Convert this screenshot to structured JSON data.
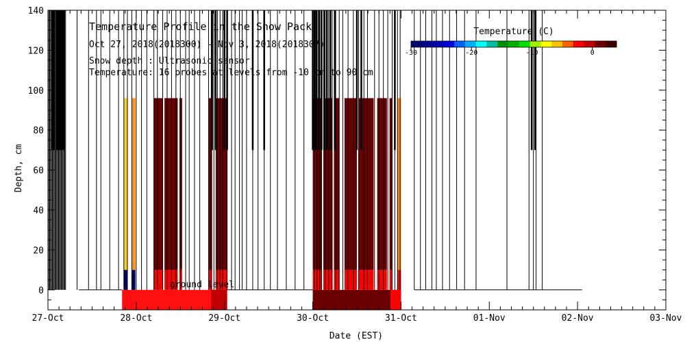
{
  "chart_data": {
    "type": "heatmap",
    "title": "Temperature Profile in the Snow Pack",
    "subtitle": "Oct 27, 2018(2018300) - Nov  3, 2018(2018307)",
    "notes": [
      "Snow depth : Ultrasonic sensor",
      "Temperature: 16 probes at levels from -10 cm to 90 cm"
    ],
    "xlabel": "Date (EST)",
    "ylabel": "Depth, cm",
    "x_unit": "day (0 = 27-Oct 00:00 EST)",
    "xlim": [
      0,
      7
    ],
    "ylim": [
      -10,
      140
    ],
    "x_ticks": [
      {
        "day": 0,
        "label": "27-Oct"
      },
      {
        "day": 1,
        "label": "28-Oct"
      },
      {
        "day": 2,
        "label": "29-Oct"
      },
      {
        "day": 3,
        "label": "30-Oct"
      },
      {
        "day": 4,
        "label": "31-Oct"
      },
      {
        "day": 5,
        "label": "01-Nov"
      },
      {
        "day": 6,
        "label": "02-Nov"
      },
      {
        "day": 7,
        "label": "03-Nov"
      }
    ],
    "y_ticks": [
      0,
      20,
      40,
      60,
      80,
      100,
      120,
      140
    ],
    "ground_label": "ground level",
    "colorbar": {
      "title": "Temperature (C)",
      "range": [
        -30,
        4
      ],
      "tick_labels": [
        {
          "v": -30,
          "label": "-30"
        },
        {
          "v": -20,
          "label": "-20"
        },
        {
          "v": -10,
          "label": "-10"
        },
        {
          "v": 0,
          "label": "0"
        }
      ],
      "colors": [
        "#000070",
        "#000090",
        "#0000b0",
        "#0000dd",
        "#0060ff",
        "#00b0ff",
        "#00ffff",
        "#00c0a0",
        "#009000",
        "#00b000",
        "#00e000",
        "#a0f000",
        "#ffff00",
        "#ffc000",
        "#ff6000",
        "#ff0000",
        "#c00000",
        "#700000",
        "#400000"
      ]
    },
    "colors": {
      "dark_red": "#6b0000",
      "red": "#ff0000",
      "orange": "#ff9000",
      "yellow": "#ffd020",
      "navy": "#000066",
      "soil_red": "#ff1010"
    },
    "snow_cells": [
      {
        "x0": 0.86,
        "x1": 0.9,
        "y0": 10,
        "y1": 96,
        "fill": "#ffd020"
      },
      {
        "x0": 0.86,
        "x1": 0.9,
        "y0": 0,
        "y1": 10,
        "fill": "#000066"
      },
      {
        "x0": 0.95,
        "x1": 0.99,
        "y0": 10,
        "y1": 96,
        "fill": "#ff9000"
      },
      {
        "x0": 0.95,
        "x1": 0.99,
        "y0": 0,
        "y1": 10,
        "fill": "#000066"
      },
      {
        "x0": 1.2,
        "x1": 1.3,
        "y0": 10,
        "y1": 96,
        "fill": "#6b0000"
      },
      {
        "x0": 1.2,
        "x1": 1.3,
        "y0": 0,
        "y1": 10,
        "fill": "#ff0000"
      },
      {
        "x0": 1.32,
        "x1": 1.47,
        "y0": 10,
        "y1": 96,
        "fill": "#6b0000"
      },
      {
        "x0": 1.32,
        "x1": 1.47,
        "y0": 0,
        "y1": 10,
        "fill": "#ff0000"
      },
      {
        "x0": 1.49,
        "x1": 1.52,
        "y0": 10,
        "y1": 96,
        "fill": "#6b0000"
      },
      {
        "x0": 1.49,
        "x1": 1.52,
        "y0": 0,
        "y1": 10,
        "fill": "#ff0000"
      },
      {
        "x0": 1.82,
        "x1": 1.86,
        "y0": 10,
        "y1": 96,
        "fill": "#6b0000"
      },
      {
        "x0": 1.82,
        "x1": 1.86,
        "y0": 0,
        "y1": 10,
        "fill": "#ff0000"
      },
      {
        "x0": 1.9,
        "x1": 2.03,
        "y0": 10,
        "y1": 96,
        "fill": "#6b0000"
      },
      {
        "x0": 1.9,
        "x1": 2.03,
        "y0": 0,
        "y1": 10,
        "fill": "#ff0000"
      },
      {
        "x0": 3.0,
        "x1": 3.1,
        "y0": 10,
        "y1": 96,
        "fill": "#6b0000"
      },
      {
        "x0": 3.0,
        "x1": 3.1,
        "y0": 0,
        "y1": 10,
        "fill": "#ff0000"
      },
      {
        "x0": 3.12,
        "x1": 3.22,
        "y0": 10,
        "y1": 96,
        "fill": "#6b0000"
      },
      {
        "x0": 3.12,
        "x1": 3.22,
        "y0": 0,
        "y1": 10,
        "fill": "#ff0000"
      },
      {
        "x0": 3.24,
        "x1": 3.3,
        "y0": 10,
        "y1": 96,
        "fill": "#6b0000"
      },
      {
        "x0": 3.24,
        "x1": 3.3,
        "y0": 0,
        "y1": 10,
        "fill": "#ff0000"
      },
      {
        "x0": 3.36,
        "x1": 3.5,
        "y0": 10,
        "y1": 96,
        "fill": "#6b0000"
      },
      {
        "x0": 3.36,
        "x1": 3.5,
        "y0": 0,
        "y1": 10,
        "fill": "#ff0000"
      },
      {
        "x0": 3.52,
        "x1": 3.69,
        "y0": 10,
        "y1": 96,
        "fill": "#6b0000"
      },
      {
        "x0": 3.52,
        "x1": 3.69,
        "y0": 0,
        "y1": 10,
        "fill": "#ff0000"
      },
      {
        "x0": 3.73,
        "x1": 3.84,
        "y0": 10,
        "y1": 96,
        "fill": "#6b0000"
      },
      {
        "x0": 3.73,
        "x1": 3.84,
        "y0": 0,
        "y1": 10,
        "fill": "#ff0000"
      },
      {
        "x0": 3.87,
        "x1": 3.9,
        "y0": 10,
        "y1": 96,
        "fill": "#6b0000"
      },
      {
        "x0": 3.87,
        "x1": 3.9,
        "y0": 0,
        "y1": 10,
        "fill": "#ff0000"
      },
      {
        "x0": 3.96,
        "x1": 4.0,
        "y0": 10,
        "y1": 96,
        "fill": "#ff9000"
      },
      {
        "x0": 3.96,
        "x1": 4.0,
        "y0": 0,
        "y1": 10,
        "fill": "#ff0000"
      }
    ],
    "soil_cells": [
      {
        "x0": 0.84,
        "x1": 2.03,
        "y0": -10,
        "y1": 0,
        "fill": "#ff1010"
      },
      {
        "x0": 1.85,
        "x1": 2.03,
        "y0": -10,
        "y1": 0,
        "fill": "#c00000"
      },
      {
        "x0": 3.0,
        "x1": 4.0,
        "y0": -10,
        "y1": 0,
        "fill": "#6b0000"
      },
      {
        "x0": 3.88,
        "x1": 4.0,
        "y0": -10,
        "y1": 0,
        "fill": "#ff0000"
      }
    ],
    "snow_depth_spikes": [
      0.01,
      0.02,
      0.03,
      0.04,
      0.05,
      0.06,
      0.07,
      0.08,
      0.09,
      0.1,
      0.11,
      0.12,
      0.13,
      0.14,
      0.15,
      0.16,
      0.17,
      0.18,
      0.19,
      0.2,
      0.33,
      0.46,
      0.55,
      0.6,
      0.7,
      0.8,
      0.86,
      0.9,
      0.95,
      1.0,
      1.06,
      1.12,
      1.2,
      1.24,
      1.3,
      1.35,
      1.4,
      1.45,
      1.5,
      1.56,
      1.6,
      1.66,
      1.72,
      1.82,
      1.85,
      1.88,
      1.92,
      1.95,
      1.98,
      2.03,
      2.08,
      2.12,
      2.17,
      2.2,
      2.25,
      2.32,
      2.38,
      2.45,
      2.52,
      2.6,
      2.7,
      2.8,
      2.9,
      3.02,
      3.05,
      3.08,
      3.1,
      3.14,
      3.18,
      3.22,
      3.26,
      3.3,
      3.34,
      3.4,
      3.46,
      3.52,
      3.58,
      3.62,
      3.7,
      3.75,
      3.8,
      3.85,
      3.9,
      3.93,
      3.96,
      3.99,
      4.15,
      4.22,
      4.28,
      4.35,
      4.4,
      4.47,
      4.55,
      4.63,
      4.72,
      4.85,
      5.2,
      5.45,
      5.5,
      5.53,
      5.6
    ],
    "snow_depth_heavy": [
      0.05,
      0.07,
      0.1,
      0.12,
      0.14,
      0.16,
      0.18,
      1.86,
      1.9,
      2.0,
      2.03,
      2.32,
      2.45,
      3.0,
      3.02,
      3.04,
      3.07,
      3.1,
      3.13,
      3.16,
      3.2,
      3.25,
      3.5,
      3.55,
      3.93,
      5.48,
      5.52
    ],
    "base_segments": [
      [
        0.35,
        0.84
      ],
      [
        2.03,
        3.0
      ],
      [
        4.15,
        6.05
      ]
    ]
  }
}
